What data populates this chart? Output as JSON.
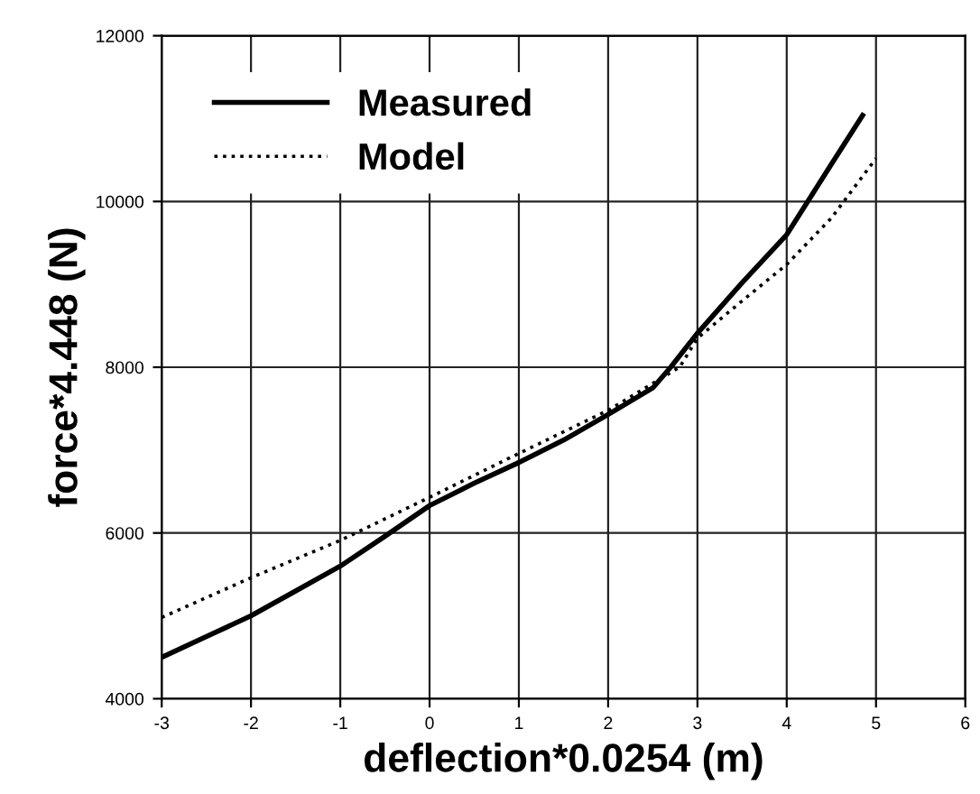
{
  "chart_data": {
    "type": "line",
    "xlabel": "deflection*0.0254 (m)",
    "ylabel": "force*4.448 (N)",
    "xlim": [
      -3,
      6
    ],
    "xticks": [
      -3,
      -2,
      -1,
      0,
      1,
      2,
      3,
      4,
      5,
      6
    ],
    "ylim": [
      4000,
      12000
    ],
    "yticks": [
      4000,
      6000,
      8000,
      10000,
      12000
    ],
    "grid": true,
    "legend": "top left",
    "series": [
      {
        "name": "Measured",
        "color": "#000000",
        "line_style": "solid",
        "x": [
          -3,
          -2.5,
          -2,
          -1.5,
          -1,
          -0.5,
          0,
          0.5,
          1,
          1.5,
          2,
          2.5,
          2.7,
          3,
          3.5,
          4,
          4.5,
          4.85
        ],
        "values": [
          4500,
          4750,
          5000,
          5300,
          5600,
          5960,
          6330,
          6600,
          6850,
          7120,
          7430,
          7750,
          8000,
          8410,
          9020,
          9600,
          10450,
          11040
        ]
      },
      {
        "name": "Model",
        "color": "#000000",
        "line_style": "dotted",
        "x": [
          -3,
          -2,
          -1,
          0,
          1,
          2,
          2.8,
          3,
          3.5,
          4,
          4.5,
          5
        ],
        "values": [
          4980,
          5460,
          5910,
          6430,
          6960,
          7480,
          8000,
          8350,
          8800,
          9240,
          9800,
          10520
        ]
      }
    ]
  }
}
